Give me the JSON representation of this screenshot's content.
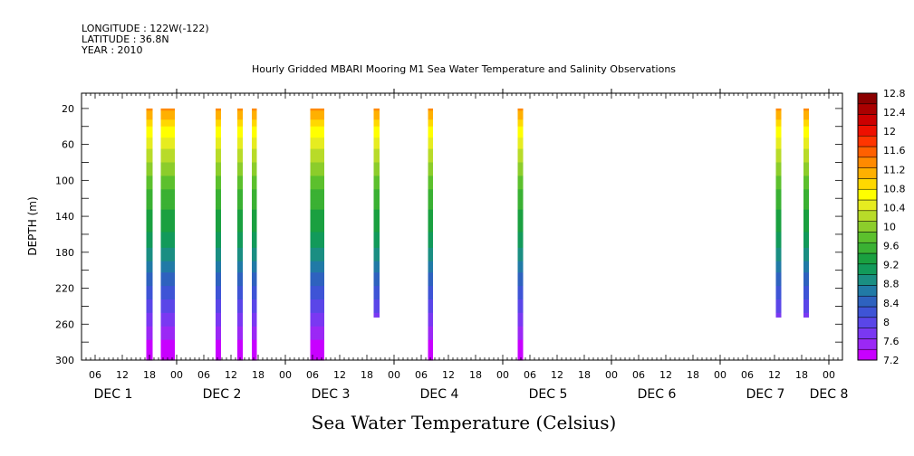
{
  "header": {
    "longitude": "LONGITUDE : 122W(-122)",
    "latitude": "LATITUDE : 36.8N",
    "year": "YEAR : 2010"
  },
  "chart_data": {
    "type": "heatmap",
    "title": "Hourly Gridded MBARI Mooring M1 Sea Water Temperature and Salinity Observations",
    "xlabel": "Sea Water Temperature (Celsius)",
    "ylabel": "DEPTH (m)",
    "x_unit": "hours since DEC 1 00:00",
    "xlim": [
      3,
      171
    ],
    "ylim": [
      300,
      3
    ],
    "y_ticks": [
      20,
      60,
      100,
      140,
      180,
      220,
      260,
      300
    ],
    "hour_tick_labels": [
      "06",
      "12",
      "18",
      "00"
    ],
    "day_labels": [
      "DEC  1",
      "DEC  2",
      "DEC  3",
      "DEC  4",
      "DEC  5",
      "DEC  6",
      "DEC  7",
      "DEC  8"
    ],
    "colorbar": {
      "levels": [
        7.2,
        7.6,
        8,
        8.4,
        8.8,
        9.2,
        9.6,
        10,
        10.4,
        10.8,
        11.2,
        11.6,
        12,
        12.4,
        12.8
      ],
      "colors": [
        "#c800ff",
        "#9b28f5",
        "#7a38f2",
        "#5a46e8",
        "#3e54d6",
        "#2e62bf",
        "#217aa6",
        "#1a8e82",
        "#129a5a",
        "#1aa040",
        "#3ab133",
        "#5cc02d",
        "#8ccd2b",
        "#b8db29",
        "#e6ec20",
        "#ffff00",
        "#ffd800",
        "#ffb000",
        "#ff8a00",
        "#ff6000",
        "#ff3500",
        "#ee1000",
        "#cc0000",
        "#aa0000",
        "#8b0000"
      ]
    },
    "columns": [
      {
        "t_start": 17.3,
        "t_end": 18.7,
        "max_depth": 300
      },
      {
        "t_start": 20.5,
        "t_end": 23.6,
        "max_depth": 300
      },
      {
        "t_start": 32.6,
        "t_end": 33.8,
        "max_depth": 300
      },
      {
        "t_start": 37.4,
        "t_end": 38.6,
        "max_depth": 300
      },
      {
        "t_start": 40.6,
        "t_end": 41.7,
        "max_depth": 300
      },
      {
        "t_start": 53.5,
        "t_end": 56.6,
        "max_depth": 300
      },
      {
        "t_start": 67.5,
        "t_end": 68.8,
        "max_depth": 252
      },
      {
        "t_start": 79.5,
        "t_end": 80.6,
        "max_depth": 300
      },
      {
        "t_start": 99.3,
        "t_end": 100.5,
        "max_depth": 300
      },
      {
        "t_start": 156.3,
        "t_end": 157.5,
        "max_depth": 252
      },
      {
        "t_start": 162.4,
        "t_end": 163.6,
        "max_depth": 252
      }
    ],
    "temperature_profile": {
      "depth": [
        20,
        30,
        40,
        60,
        80,
        100,
        120,
        140,
        160,
        180,
        200,
        220,
        240,
        260,
        280,
        300
      ],
      "temp": [
        11.3,
        11.1,
        10.8,
        10.4,
        10.1,
        9.8,
        9.5,
        9.4,
        9.2,
        8.9,
        8.6,
        8.3,
        8.0,
        7.7,
        7.4,
        7.2
      ]
    },
    "grid": false
  }
}
